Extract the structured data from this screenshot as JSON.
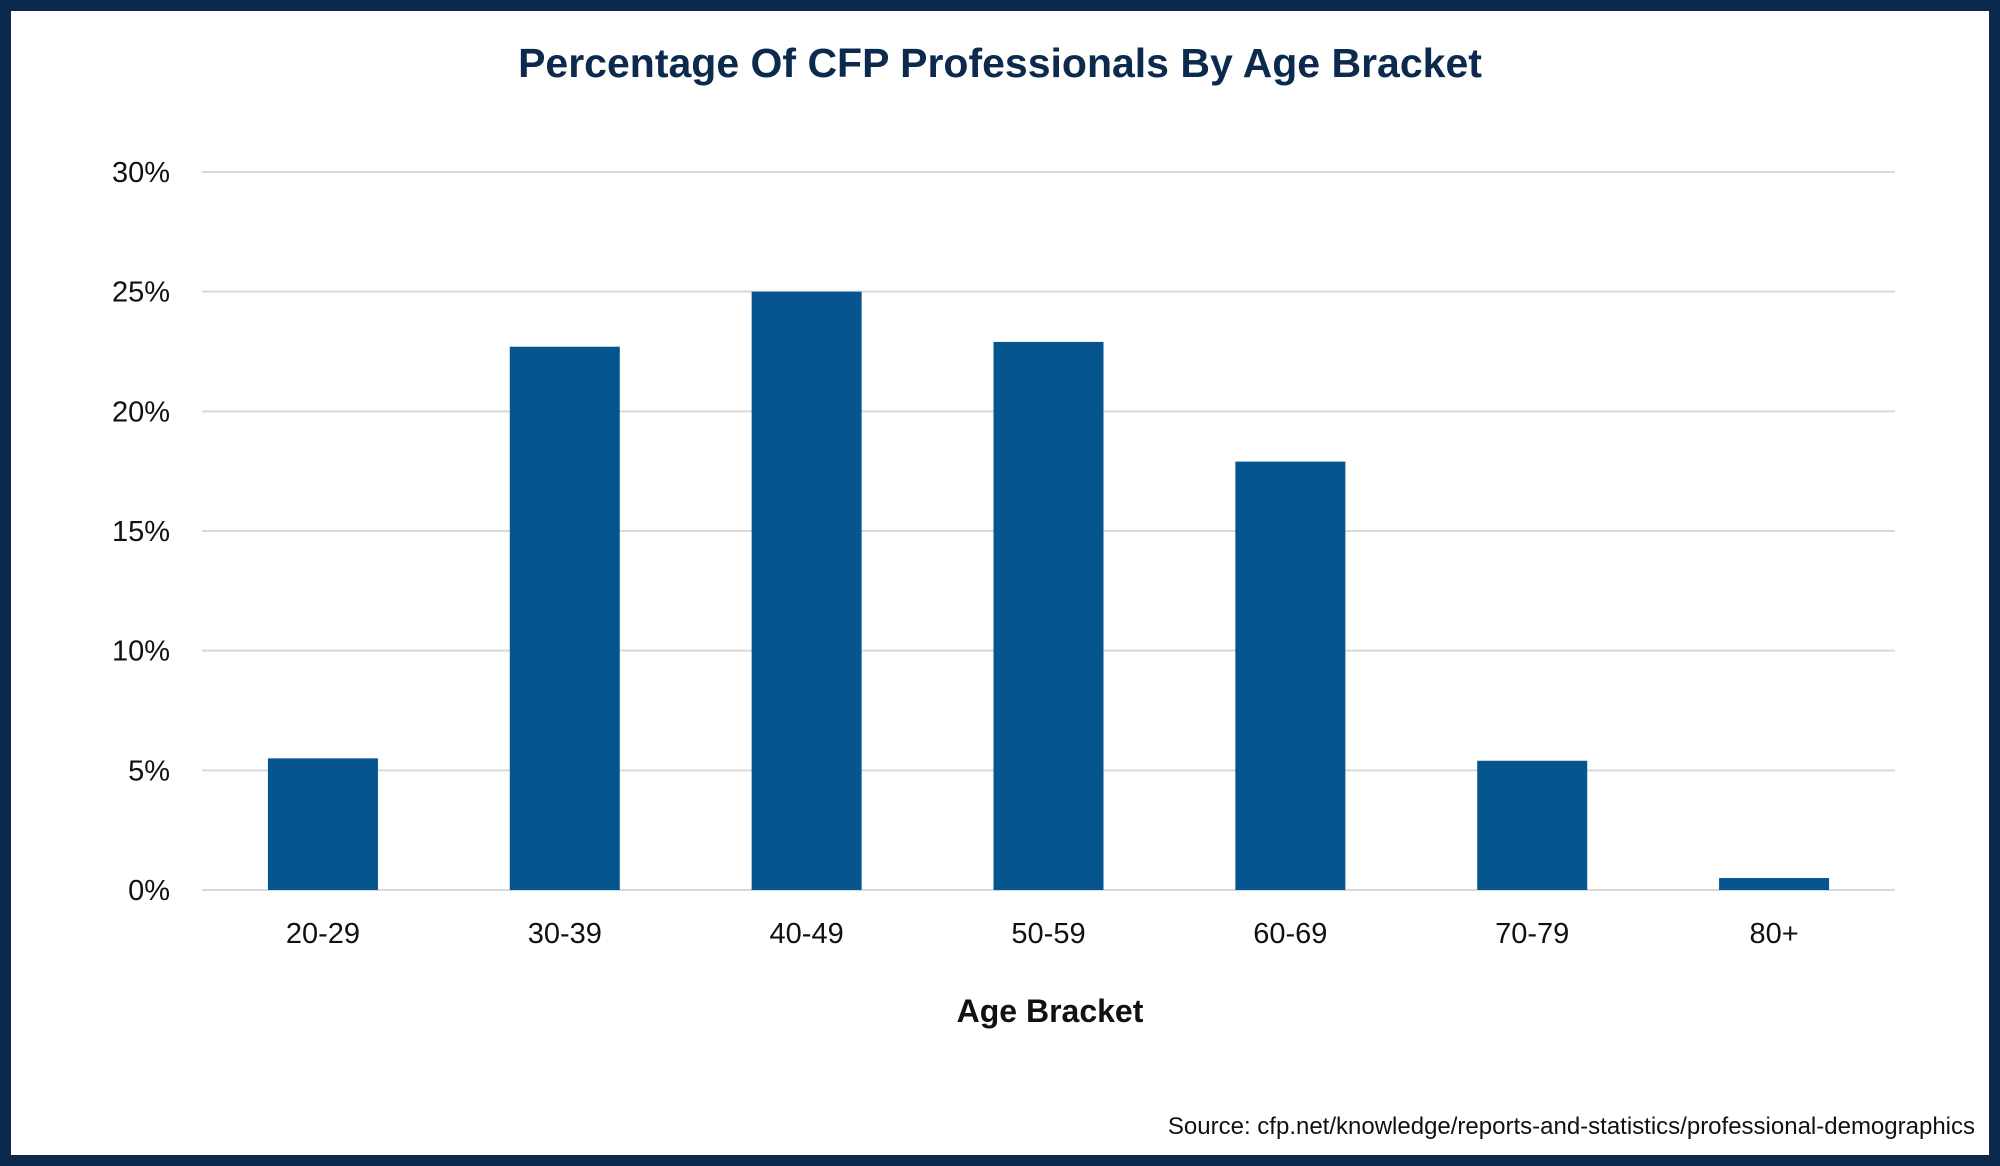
{
  "chart_data": {
    "type": "bar",
    "title": "Percentage Of CFP Professionals By Age Bracket",
    "xlabel": "Age Bracket",
    "ylabel": "",
    "categories": [
      "20-29",
      "30-39",
      "40-49",
      "50-59",
      "60-69",
      "70-79",
      "80+"
    ],
    "values": [
      5.5,
      22.7,
      25.0,
      22.9,
      17.9,
      5.4,
      0.5
    ],
    "ylim": [
      0,
      30
    ],
    "yticks": [
      0,
      5,
      10,
      15,
      20,
      25,
      30
    ],
    "ytick_labels": [
      "0%",
      "5%",
      "10%",
      "15%",
      "20%",
      "25%",
      "30%"
    ],
    "grid": true,
    "legend": "none",
    "bar_color": "#06558f",
    "source": "Source: cfp.net/knowledge/reports-and-statistics/professional-demographics"
  },
  "colors": {
    "frame": "#0b2a4d",
    "title": "#0b2a4d",
    "grid": "#d9d9d9"
  }
}
